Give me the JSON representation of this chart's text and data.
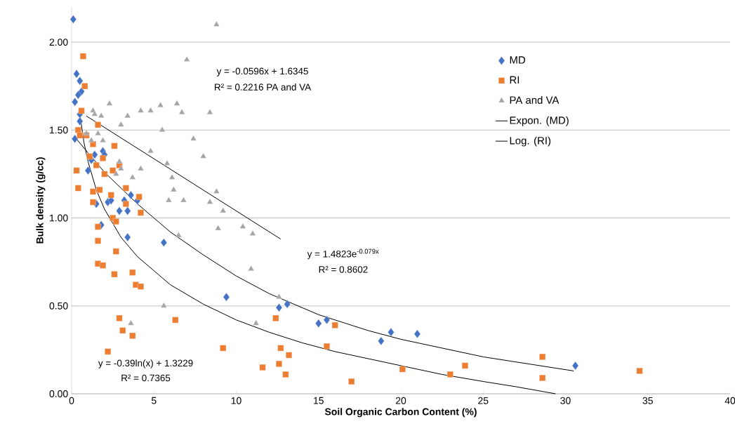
{
  "chart_data": {
    "type": "scatter",
    "xlabel": "Soil Organic Carbon Content (%)",
    "ylabel": "Bulk density (g/cc)",
    "xlim": [
      0,
      40
    ],
    "ylim": [
      0,
      2.2
    ],
    "xticks": [
      0,
      5,
      10,
      15,
      20,
      25,
      30,
      35,
      40
    ],
    "yticks": [
      {
        "value": 0,
        "label": "0.00"
      },
      {
        "value": 0.5,
        "label": "0.50"
      },
      {
        "value": 1,
        "label": "1.00"
      },
      {
        "value": 1.5,
        "label": "1.50"
      },
      {
        "value": 2,
        "label": "2.00"
      }
    ],
    "grid": "y",
    "legend": "top right",
    "annotations": [
      "y = -0.0596x + 1.6345",
      "R² = 0.2216 PA and VA",
      "y = 1.4823e$^{-0.079x}$",
      "R² = 0.8602",
      "y = -0.39ln(x) + 1.3229",
      "R² = 0.7365"
    ],
    "series": [
      {
        "name": "MD",
        "color": "#4472c4",
        "marker": "diamond",
        "x": [
          0.1,
          0.3,
          0.5,
          0.6,
          0.4,
          0.2,
          0.5,
          0.5,
          0.2,
          1.0,
          1.2,
          1.4,
          1.9,
          2.0,
          1.6,
          1.5,
          1.8,
          2.2,
          2.4,
          2.9,
          3.2,
          3.4,
          3.6,
          3.4,
          4.0,
          5.6,
          9.4,
          12.6,
          13.1,
          15.0,
          15.5,
          18.8,
          19.4,
          21.0,
          30.6
        ],
        "values": [
          2.13,
          1.82,
          1.78,
          1.72,
          1.7,
          1.66,
          1.59,
          1.55,
          1.45,
          1.27,
          1.33,
          1.36,
          1.38,
          1.36,
          null,
          1.08,
          0.96,
          1.09,
          1.1,
          1.04,
          1.1,
          1.04,
          1.13,
          0.89,
          1.1,
          0.86,
          0.55,
          0.49,
          0.51,
          0.4,
          0.42,
          0.3,
          0.35,
          0.34,
          0.16
        ]
      },
      {
        "name": "RI",
        "color": "#ed7d31",
        "marker": "square",
        "x": [
          0.7,
          0.8,
          0.6,
          1.6,
          0.4,
          0.5,
          0.9,
          0.3,
          0.4,
          1.3,
          1.1,
          1.5,
          1.3,
          1.3,
          1.7,
          2.0,
          1.9,
          2.6,
          2.9,
          2.4,
          2.5,
          3.3,
          3.3,
          4.1,
          4.2,
          2.5,
          2.7,
          1.6,
          1.6,
          1.6,
          1.9,
          2.6,
          2.7,
          3.7,
          3.9,
          4.2,
          2.9,
          3.1,
          3.7,
          2.2,
          6.3,
          9.2,
          11.6,
          12.4,
          12.6,
          12.7,
          13.2,
          13.0,
          15.5,
          16.0,
          17.0,
          20.1,
          23.0,
          23.9,
          28.6,
          28.6,
          34.5
        ],
        "values": [
          1.92,
          1.75,
          1.61,
          1.53,
          1.5,
          1.47,
          1.47,
          1.27,
          1.17,
          1.42,
          1.35,
          1.3,
          1.15,
          1.09,
          1.16,
          1.25,
          1.34,
          1.41,
          1.3,
          1.13,
          1.27,
          1.17,
          1.08,
          1.12,
          1.03,
          1.0,
          0.98,
          0.95,
          0.87,
          0.74,
          0.73,
          0.68,
          0.81,
          0.69,
          0.62,
          0.61,
          0.43,
          0.36,
          0.33,
          0.24,
          0.42,
          0.26,
          0.15,
          0.43,
          0.17,
          0.26,
          0.22,
          0.11,
          0.27,
          0.39,
          0.07,
          0.14,
          0.11,
          0.16,
          0.21,
          0.09,
          0.13
        ]
      },
      {
        "name": "PA and VA",
        "color": "#a5a5a5",
        "marker": "triangle",
        "x": [
          8.8,
          7.0,
          1.3,
          1.4,
          1.8,
          2.3,
          3.4,
          3.0,
          4.2,
          4.8,
          5.4,
          6.4,
          6.7,
          8.4,
          5.5,
          7.4,
          1.6,
          1.9,
          0.9,
          1.2,
          4.8,
          8.0,
          2.9,
          3.0,
          2.7,
          4.2,
          3.7,
          5.8,
          6.1,
          6.2,
          5.9,
          6.8,
          8.8,
          8.4,
          9.2,
          8.9,
          10.4,
          11.0,
          6.5,
          10.9,
          12.6,
          5.6,
          3.6,
          11.2
        ],
        "values": [
          2.1,
          1.9,
          1.61,
          1.59,
          1.58,
          1.65,
          1.58,
          1.53,
          1.61,
          1.61,
          1.64,
          1.65,
          1.6,
          1.6,
          1.5,
          1.45,
          1.48,
          1.44,
          1.48,
          1.44,
          1.38,
          1.35,
          1.32,
          1.28,
          1.25,
          1.28,
          1.23,
          1.31,
          1.23,
          1.16,
          1.1,
          1.1,
          1.15,
          1.09,
          1.04,
          0.94,
          0.95,
          0.91,
          0.9,
          0.71,
          0.55,
          0.5,
          0.4,
          0.4
        ]
      },
      {
        "name": "Expon. (MD)",
        "type": "line",
        "color": "#000000",
        "marker": "none",
        "x": [
          0.2,
          1,
          2,
          3,
          4,
          5,
          6,
          8,
          10,
          12,
          15,
          18,
          20,
          25,
          30.5
        ],
        "values": [
          1.46,
          1.37,
          1.26,
          1.17,
          1.08,
          1.0,
          0.92,
          0.79,
          0.67,
          0.57,
          0.45,
          0.36,
          0.31,
          0.21,
          0.13
        ]
      },
      {
        "name": "Log. (RI)",
        "type": "line",
        "color": "#000000",
        "marker": "none",
        "x": [
          0.5,
          0.75,
          1,
          1.5,
          2,
          2.5,
          3,
          4,
          5,
          6,
          8,
          10,
          12,
          14,
          16,
          18,
          20,
          22.5,
          25,
          27,
          29.4
        ],
        "values": [
          1.59,
          1.43,
          1.32,
          1.16,
          1.05,
          0.97,
          0.89,
          0.78,
          0.7,
          0.62,
          0.51,
          0.42,
          0.35,
          0.29,
          0.24,
          0.2,
          0.16,
          0.11,
          0.07,
          0.04,
          0.0
        ]
      },
      {
        "type": "line",
        "color": "#000000",
        "marker": "none",
        "x": [
          0.9,
          12.7
        ],
        "values": [
          1.58,
          0.88
        ]
      }
    ]
  }
}
